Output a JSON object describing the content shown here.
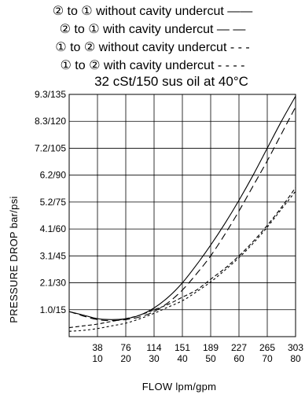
{
  "chart_data": {
    "type": "line",
    "subtitle": "32 cSt/150 sus oil at 40°C",
    "legend_lines": [
      "② to ① without cavity undercut ——",
      "② to ① with cavity undercut — —",
      "① to ② without cavity undercut - - -",
      "① to ② with cavity undercut - - - -"
    ],
    "xlabel": "FLOW lpm/gpm",
    "ylabel": "PRESSURE DROP bar/psi",
    "xlim": [
      0,
      80
    ],
    "ylim": [
      0,
      135
    ],
    "x_ticks": [
      {
        "value": 10,
        "lpm": "38",
        "gpm": "10"
      },
      {
        "value": 20,
        "lpm": "76",
        "gpm": "20"
      },
      {
        "value": 30,
        "lpm": "114",
        "gpm": "30"
      },
      {
        "value": 40,
        "lpm": "151",
        "gpm": "40"
      },
      {
        "value": 50,
        "lpm": "189",
        "gpm": "50"
      },
      {
        "value": 60,
        "lpm": "227",
        "gpm": "60"
      },
      {
        "value": 70,
        "lpm": "265",
        "gpm": "70"
      },
      {
        "value": 80,
        "lpm": "303",
        "gpm": "80"
      }
    ],
    "y_ticks": [
      {
        "value": 15,
        "label": "1.0/15"
      },
      {
        "value": 30,
        "label": "2.1/30"
      },
      {
        "value": 45,
        "label": "3.1/45"
      },
      {
        "value": 60,
        "label": "4.1/60"
      },
      {
        "value": 75,
        "label": "5.2/75"
      },
      {
        "value": 90,
        "label": "6.2/90"
      },
      {
        "value": 105,
        "label": "7.2/105"
      },
      {
        "value": 120,
        "label": "8.3/120"
      },
      {
        "value": 135,
        "label": "9.3/135"
      }
    ],
    "grid": true,
    "series": [
      {
        "dash": "",
        "x": [
          0,
          5,
          10,
          15,
          20,
          25,
          30,
          35,
          40,
          45,
          50,
          55,
          60,
          65,
          70,
          75,
          80
        ],
        "y": [
          14,
          12,
          10,
          9.5,
          10,
          12,
          16,
          22,
          30,
          40,
          51,
          63,
          76,
          90,
          105,
          120,
          134
        ]
      },
      {
        "dash": "9,5",
        "x": [
          0,
          5,
          10,
          15,
          20,
          25,
          30,
          35,
          40,
          45,
          50,
          55,
          60,
          65,
          70,
          75,
          80
        ],
        "y": [
          14,
          11.5,
          9.5,
          9,
          9.5,
          11,
          14,
          19,
          26,
          35,
          45,
          57,
          70,
          84,
          98,
          113,
          128
        ]
      },
      {
        "dash": "5,3",
        "x": [
          0,
          5,
          10,
          15,
          20,
          25,
          30,
          35,
          40,
          45,
          50,
          55,
          60,
          65,
          70,
          75,
          80
        ],
        "y": [
          5,
          6,
          7,
          8.5,
          10,
          12,
          15,
          18,
          22,
          26,
          32,
          38,
          45,
          53,
          62,
          72,
          83
        ]
      },
      {
        "dash": "3,3",
        "x": [
          0,
          5,
          10,
          15,
          20,
          25,
          30,
          35,
          40,
          45,
          50,
          55,
          60,
          65,
          70,
          75,
          80
        ],
        "y": [
          3,
          3.5,
          4.5,
          6,
          7.5,
          10,
          13,
          16.5,
          20,
          25,
          30.5,
          37,
          44,
          52,
          61,
          71,
          81
        ]
      }
    ]
  }
}
